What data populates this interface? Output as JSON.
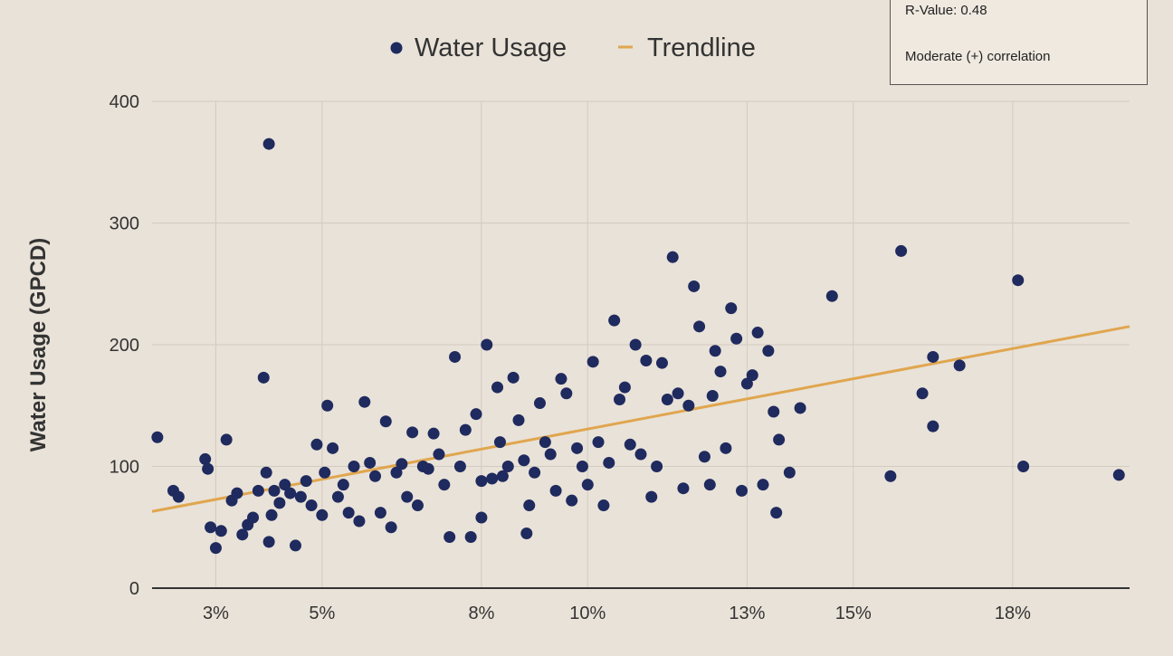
{
  "stats_box": {
    "r_value": "R-Value: 0.48",
    "note": "Moderate (+) correlation"
  },
  "colors": {
    "point": "#1f2a5e",
    "trend": "#e0a64f",
    "grid": "#d2cbc1",
    "axis": "#333333",
    "text": "#333333"
  },
  "chart_data": {
    "type": "scatter",
    "ylabel": "Water Usage (GPCD)",
    "xlabel": "",
    "legend": [
      "Water Usage",
      "Trendline"
    ],
    "legend_position": "top",
    "grid": true,
    "xlim": [
      1.8,
      20.2
    ],
    "ylim": [
      0,
      400
    ],
    "x_ticks": [
      3,
      5,
      8,
      10,
      13,
      15,
      18
    ],
    "x_tick_labels": [
      "3%",
      "5%",
      "8%",
      "10%",
      "13%",
      "15%",
      "18%"
    ],
    "y_ticks": [
      0,
      100,
      200,
      300,
      400
    ],
    "y_tick_labels": [
      "0",
      "100",
      "200",
      "300",
      "400"
    ],
    "trendline": {
      "x": [
        1.8,
        20.2
      ],
      "y": [
        63,
        215
      ]
    },
    "series": [
      {
        "name": "Water Usage",
        "points": [
          [
            1.9,
            124
          ],
          [
            2.2,
            80
          ],
          [
            2.3,
            75
          ],
          [
            2.8,
            106
          ],
          [
            2.85,
            98
          ],
          [
            2.9,
            50
          ],
          [
            3.0,
            33
          ],
          [
            3.1,
            47
          ],
          [
            3.2,
            122
          ],
          [
            3.3,
            72
          ],
          [
            3.4,
            78
          ],
          [
            3.5,
            44
          ],
          [
            3.6,
            52
          ],
          [
            3.7,
            58
          ],
          [
            3.8,
            80
          ],
          [
            3.9,
            173
          ],
          [
            3.95,
            95
          ],
          [
            4.0,
            365
          ],
          [
            4.0,
            38
          ],
          [
            4.05,
            60
          ],
          [
            4.1,
            80
          ],
          [
            4.2,
            70
          ],
          [
            4.3,
            85
          ],
          [
            4.4,
            78
          ],
          [
            4.5,
            35
          ],
          [
            4.6,
            75
          ],
          [
            4.7,
            88
          ],
          [
            4.8,
            68
          ],
          [
            4.9,
            118
          ],
          [
            5.0,
            60
          ],
          [
            5.05,
            95
          ],
          [
            5.1,
            150
          ],
          [
            5.2,
            115
          ],
          [
            5.3,
            75
          ],
          [
            5.4,
            85
          ],
          [
            5.5,
            62
          ],
          [
            5.6,
            100
          ],
          [
            5.7,
            55
          ],
          [
            5.8,
            153
          ],
          [
            5.9,
            103
          ],
          [
            6.0,
            92
          ],
          [
            6.1,
            62
          ],
          [
            6.2,
            137
          ],
          [
            6.3,
            50
          ],
          [
            6.4,
            95
          ],
          [
            6.5,
            102
          ],
          [
            6.6,
            75
          ],
          [
            6.7,
            128
          ],
          [
            6.8,
            68
          ],
          [
            6.9,
            100
          ],
          [
            7.0,
            98
          ],
          [
            7.1,
            127
          ],
          [
            7.2,
            110
          ],
          [
            7.3,
            85
          ],
          [
            7.4,
            42
          ],
          [
            7.5,
            190
          ],
          [
            7.6,
            100
          ],
          [
            7.7,
            130
          ],
          [
            7.8,
            42
          ],
          [
            7.9,
            143
          ],
          [
            8.0,
            58
          ],
          [
            8.0,
            88
          ],
          [
            8.1,
            200
          ],
          [
            8.2,
            90
          ],
          [
            8.3,
            165
          ],
          [
            8.35,
            120
          ],
          [
            8.4,
            92
          ],
          [
            8.5,
            100
          ],
          [
            8.6,
            173
          ],
          [
            8.7,
            138
          ],
          [
            8.8,
            105
          ],
          [
            8.85,
            45
          ],
          [
            8.9,
            68
          ],
          [
            9.0,
            95
          ],
          [
            9.1,
            152
          ],
          [
            9.2,
            120
          ],
          [
            9.3,
            110
          ],
          [
            9.4,
            80
          ],
          [
            9.5,
            172
          ],
          [
            9.6,
            160
          ],
          [
            9.7,
            72
          ],
          [
            9.8,
            115
          ],
          [
            9.9,
            100
          ],
          [
            10.0,
            85
          ],
          [
            10.1,
            186
          ],
          [
            10.2,
            120
          ],
          [
            10.3,
            68
          ],
          [
            10.4,
            103
          ],
          [
            10.5,
            220
          ],
          [
            10.6,
            155
          ],
          [
            10.7,
            165
          ],
          [
            10.8,
            118
          ],
          [
            10.9,
            200
          ],
          [
            11.0,
            110
          ],
          [
            11.1,
            187
          ],
          [
            11.2,
            75
          ],
          [
            11.3,
            100
          ],
          [
            11.4,
            185
          ],
          [
            11.5,
            155
          ],
          [
            11.6,
            272
          ],
          [
            11.7,
            160
          ],
          [
            11.8,
            82
          ],
          [
            11.9,
            150
          ],
          [
            12.0,
            248
          ],
          [
            12.1,
            215
          ],
          [
            12.2,
            108
          ],
          [
            12.3,
            85
          ],
          [
            12.35,
            158
          ],
          [
            12.4,
            195
          ],
          [
            12.5,
            178
          ],
          [
            12.6,
            115
          ],
          [
            12.7,
            230
          ],
          [
            12.8,
            205
          ],
          [
            12.9,
            80
          ],
          [
            13.0,
            168
          ],
          [
            13.1,
            175
          ],
          [
            13.2,
            210
          ],
          [
            13.3,
            85
          ],
          [
            13.4,
            195
          ],
          [
            13.5,
            145
          ],
          [
            13.55,
            62
          ],
          [
            13.6,
            122
          ],
          [
            13.8,
            95
          ],
          [
            14.0,
            148
          ],
          [
            14.6,
            240
          ],
          [
            15.7,
            92
          ],
          [
            15.9,
            277
          ],
          [
            16.3,
            160
          ],
          [
            16.5,
            190
          ],
          [
            16.5,
            133
          ],
          [
            17.0,
            183
          ],
          [
            18.1,
            253
          ],
          [
            18.2,
            100
          ],
          [
            20.0,
            93
          ]
        ]
      }
    ]
  }
}
